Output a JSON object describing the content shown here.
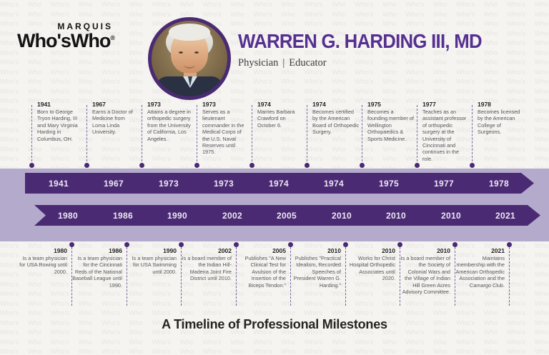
{
  "header": {
    "logo": {
      "top": "MARQUIS",
      "main": "Who'sWho",
      "registered": "®"
    },
    "name": "WARREN G. HARDING III, MD",
    "roles": [
      "Physician",
      "Educator"
    ],
    "roles_separator": "|"
  },
  "colors": {
    "accent_purple": "#4b2a74",
    "band_lavender": "#b4aacb",
    "headline_purple": "#563090"
  },
  "watermark": {
    "text": "Who's Who"
  },
  "timeline": {
    "top_row": [
      {
        "year": "1941",
        "text": "Born to George Tryon Harding, III and Mary Virginia Harding in Columbus, OH."
      },
      {
        "year": "1967",
        "text": "Earns a Doctor of Medicine from Loma Linda University."
      },
      {
        "year": "1973",
        "text": "Attains a degree in orthopedic surgery from the University of California, Los Angeles."
      },
      {
        "year": "1973",
        "text": "Serves as a lieutenant commander in the Medical Corps of the U.S. Naval Reserves until 1975."
      },
      {
        "year": "1974",
        "text": "Marries Barbara Crawford on October 6."
      },
      {
        "year": "1974",
        "text": "Becomes certified by the American Board of Orthopedic Surgery."
      },
      {
        "year": "1975",
        "text": "Becomes a founding member of Wellington Orthopaedics & Sports Medicine."
      },
      {
        "year": "1977",
        "text": "Teaches as an assistant professor of orthopedic surgery at the University of Cincinnati and continues in the role."
      },
      {
        "year": "1978",
        "text": "Becomes licensed by the American College of Surgeons."
      }
    ],
    "bottom_row": [
      {
        "year": "1980",
        "text": "Is a team physician for USA Rowing until 2000."
      },
      {
        "year": "1986",
        "text": "Is a team physician for the Cincinnati Reds of the National Baseball League until 1990."
      },
      {
        "year": "1990",
        "text": "Is a team physician for USA Swimming until 2000."
      },
      {
        "year": "2002",
        "text": "Is a board member of the Indian Hill-Madeira Joint Fire District until 2010."
      },
      {
        "year": "2005",
        "text": "Publishes \"A New Clinical Test for Avulsion of the Insertion of the Biceps Tendon.\""
      },
      {
        "year": "2010",
        "text": "Publishes \"Practical Idealism, Recorded Speeches of President Warren G. Harding.\""
      },
      {
        "year": "2010",
        "text": "Works for Christ Hospital Orthopedic Associates until 2020."
      },
      {
        "year": "2010",
        "text": "Is a board member of the Society of Colonial Wars and the Village of Indian Hill Green Acres Advisory Committee."
      },
      {
        "year": "2021",
        "text": "Maintains membership with the American Orthopedic Association and the Camargo Club."
      }
    ]
  },
  "footer": {
    "title": "A Timeline of Professional Milestones"
  }
}
